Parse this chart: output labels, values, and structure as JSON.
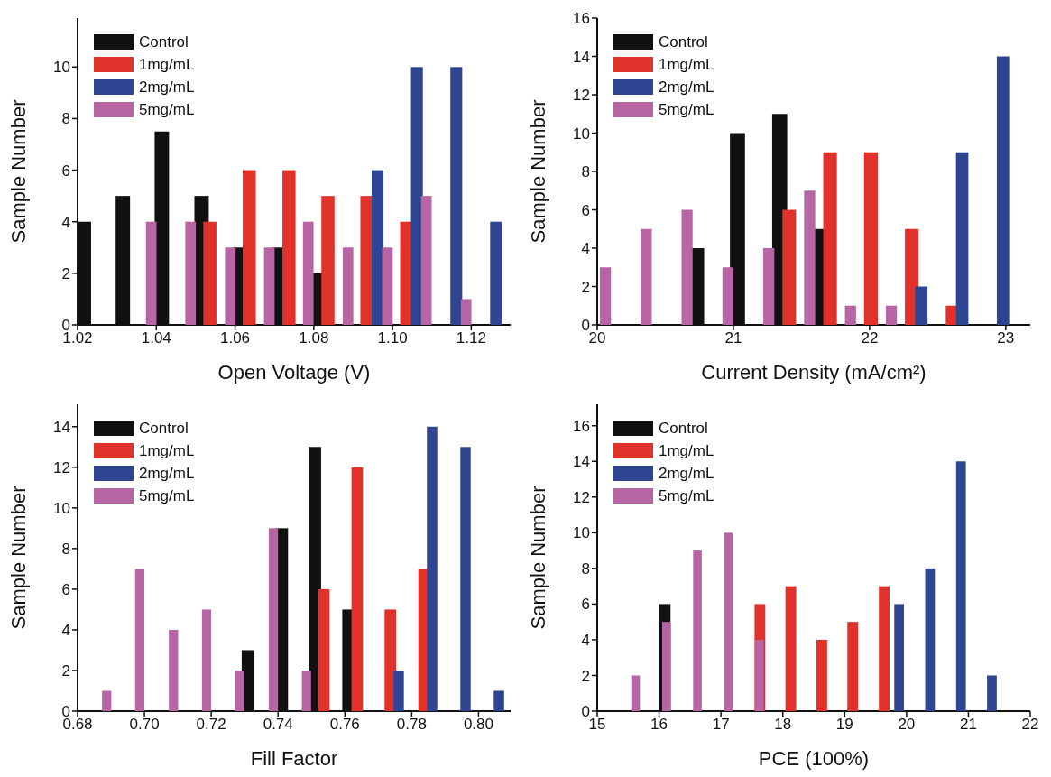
{
  "chart_data": [
    {
      "type": "bar",
      "xlabel": "Open Voltage (V)",
      "ylabel": "Sample Number",
      "legend": "top left",
      "xlim": [
        1.02,
        1.13
      ],
      "xticks": [
        1.02,
        1.04,
        1.06,
        1.08,
        {
          "value": 1.1,
          "label": "1.10"
        },
        1.12
      ],
      "ylim": [
        0,
        11.9
      ],
      "yticks": [
        0,
        2,
        4,
        6,
        8,
        10
      ],
      "series": [
        {
          "name": "Control",
          "color": "#111111",
          "x": [
            1.0216,
            1.0315,
            1.0414,
            1.0515,
            1.0611,
            1.0712,
            1.0811
          ],
          "values": [
            4,
            5,
            7.5,
            5,
            3,
            3,
            2
          ]
        },
        {
          "name": "1mg/mL",
          "color": "#e0312b",
          "x": [
            1.0536,
            1.0636,
            1.0737,
            1.0836,
            1.0935,
            1.1036
          ],
          "values": [
            4,
            6,
            6,
            5,
            5,
            4
          ]
        },
        {
          "name": "2mg/mL",
          "color": "#2e4591",
          "x": [
            1.0962,
            1.1062,
            1.1162,
            1.1263
          ],
          "values": [
            6,
            10,
            10,
            4
          ]
        },
        {
          "name": "5mg/mL",
          "color": "#b865a6",
          "x": [
            1.0387,
            1.0487,
            1.0588,
            1.0687,
            1.0786,
            1.0887,
            1.0987,
            1.1086,
            1.1187
          ],
          "values": [
            4,
            4,
            3,
            3,
            4,
            3,
            3,
            5,
            1
          ]
        }
      ]
    },
    {
      "type": "bar",
      "xlabel": "Current Density (mA/cm²)",
      "ylabel": "Sample Number",
      "legend": "top left",
      "xlim": [
        20,
        23.18
      ],
      "xticks": [
        20,
        21,
        22,
        23
      ],
      "ylim": [
        0,
        16
      ],
      "yticks": [
        0,
        2,
        4,
        6,
        8,
        10,
        12,
        14,
        16
      ],
      "series": [
        {
          "name": "Control",
          "color": "#111111",
          "x": [
            20.73,
            21.03,
            21.34,
            21.63
          ],
          "values": [
            4,
            10,
            11,
            5
          ]
        },
        {
          "name": "1mg/mL",
          "color": "#e0312b",
          "x": [
            21.41,
            21.71,
            22.01,
            22.31,
            22.61
          ],
          "values": [
            6,
            9,
            9,
            5,
            1
          ]
        },
        {
          "name": "2mg/mL",
          "color": "#2e4591",
          "x": [
            22.38,
            22.68,
            22.98
          ],
          "values": [
            2,
            9,
            14
          ]
        },
        {
          "name": "5mg/mL",
          "color": "#b865a6",
          "x": [
            20.06,
            20.36,
            20.66,
            20.96,
            21.26,
            21.56,
            21.86,
            22.16
          ],
          "values": [
            3,
            5,
            6,
            3,
            4,
            7,
            1,
            1
          ]
        }
      ]
    },
    {
      "type": "bar",
      "xlabel": "Fill Factor",
      "ylabel": "Sample Number",
      "legend": "top left",
      "xlim": [
        0.68,
        0.8096
      ],
      "xticks": [
        0.68,
        {
          "value": 0.7,
          "label": "0.70"
        },
        0.72,
        0.74,
        0.76,
        0.78,
        {
          "value": 0.8,
          "label": "0.80"
        }
      ],
      "ylim": [
        0,
        15.1
      ],
      "yticks": [
        0,
        2,
        4,
        6,
        8,
        10,
        12,
        14
      ],
      "series": [
        {
          "name": "Control",
          "color": "#111111",
          "x": [
            0.731,
            0.7411,
            0.751,
            0.7611
          ],
          "values": [
            3,
            9,
            13,
            5
          ]
        },
        {
          "name": "1mg/mL",
          "color": "#e0312b",
          "x": [
            0.7537,
            0.7637,
            0.7736,
            0.7837
          ],
          "values": [
            6,
            12,
            5,
            7
          ]
        },
        {
          "name": "2mg/mL",
          "color": "#2e4591",
          "x": [
            0.7761,
            0.7861,
            0.7961,
            0.8061
          ],
          "values": [
            2,
            14,
            13,
            1
          ]
        },
        {
          "name": "5mg/mL",
          "color": "#b865a6",
          "x": [
            0.6887,
            0.6986,
            0.7087,
            0.7186,
            0.7285,
            0.7386,
            0.7485
          ],
          "values": [
            1,
            7,
            4,
            5,
            2,
            9,
            2
          ]
        }
      ]
    },
    {
      "type": "bar",
      "xlabel": "PCE (100%)",
      "ylabel": "Sample Number",
      "legend": "top left",
      "xlim": [
        15,
        22
      ],
      "xticks": [
        15,
        16,
        17,
        18,
        19,
        20,
        21,
        22
      ],
      "ylim": [
        0,
        17.2
      ],
      "yticks": [
        0,
        2,
        4,
        6,
        8,
        10,
        12,
        14,
        16
      ],
      "series": [
        {
          "name": "Control",
          "color": "#111111",
          "x": [
            16.09
          ],
          "values": [
            6
          ]
        },
        {
          "name": "1mg/mL",
          "color": "#e0312b",
          "x": [
            17.63,
            18.13,
            18.63,
            19.13,
            19.64
          ],
          "values": [
            6,
            7,
            4,
            5,
            7
          ]
        },
        {
          "name": "2mg/mL",
          "color": "#2e4591",
          "x": [
            19.88,
            20.38,
            20.88,
            21.38
          ],
          "values": [
            6,
            8,
            14,
            2
          ]
        },
        {
          "name": "5mg/mL",
          "color": "#b865a6",
          "x": [
            15.62,
            16.12,
            16.62,
            17.12,
            17.62
          ],
          "values": [
            2,
            5,
            9,
            10,
            4
          ]
        }
      ]
    }
  ]
}
